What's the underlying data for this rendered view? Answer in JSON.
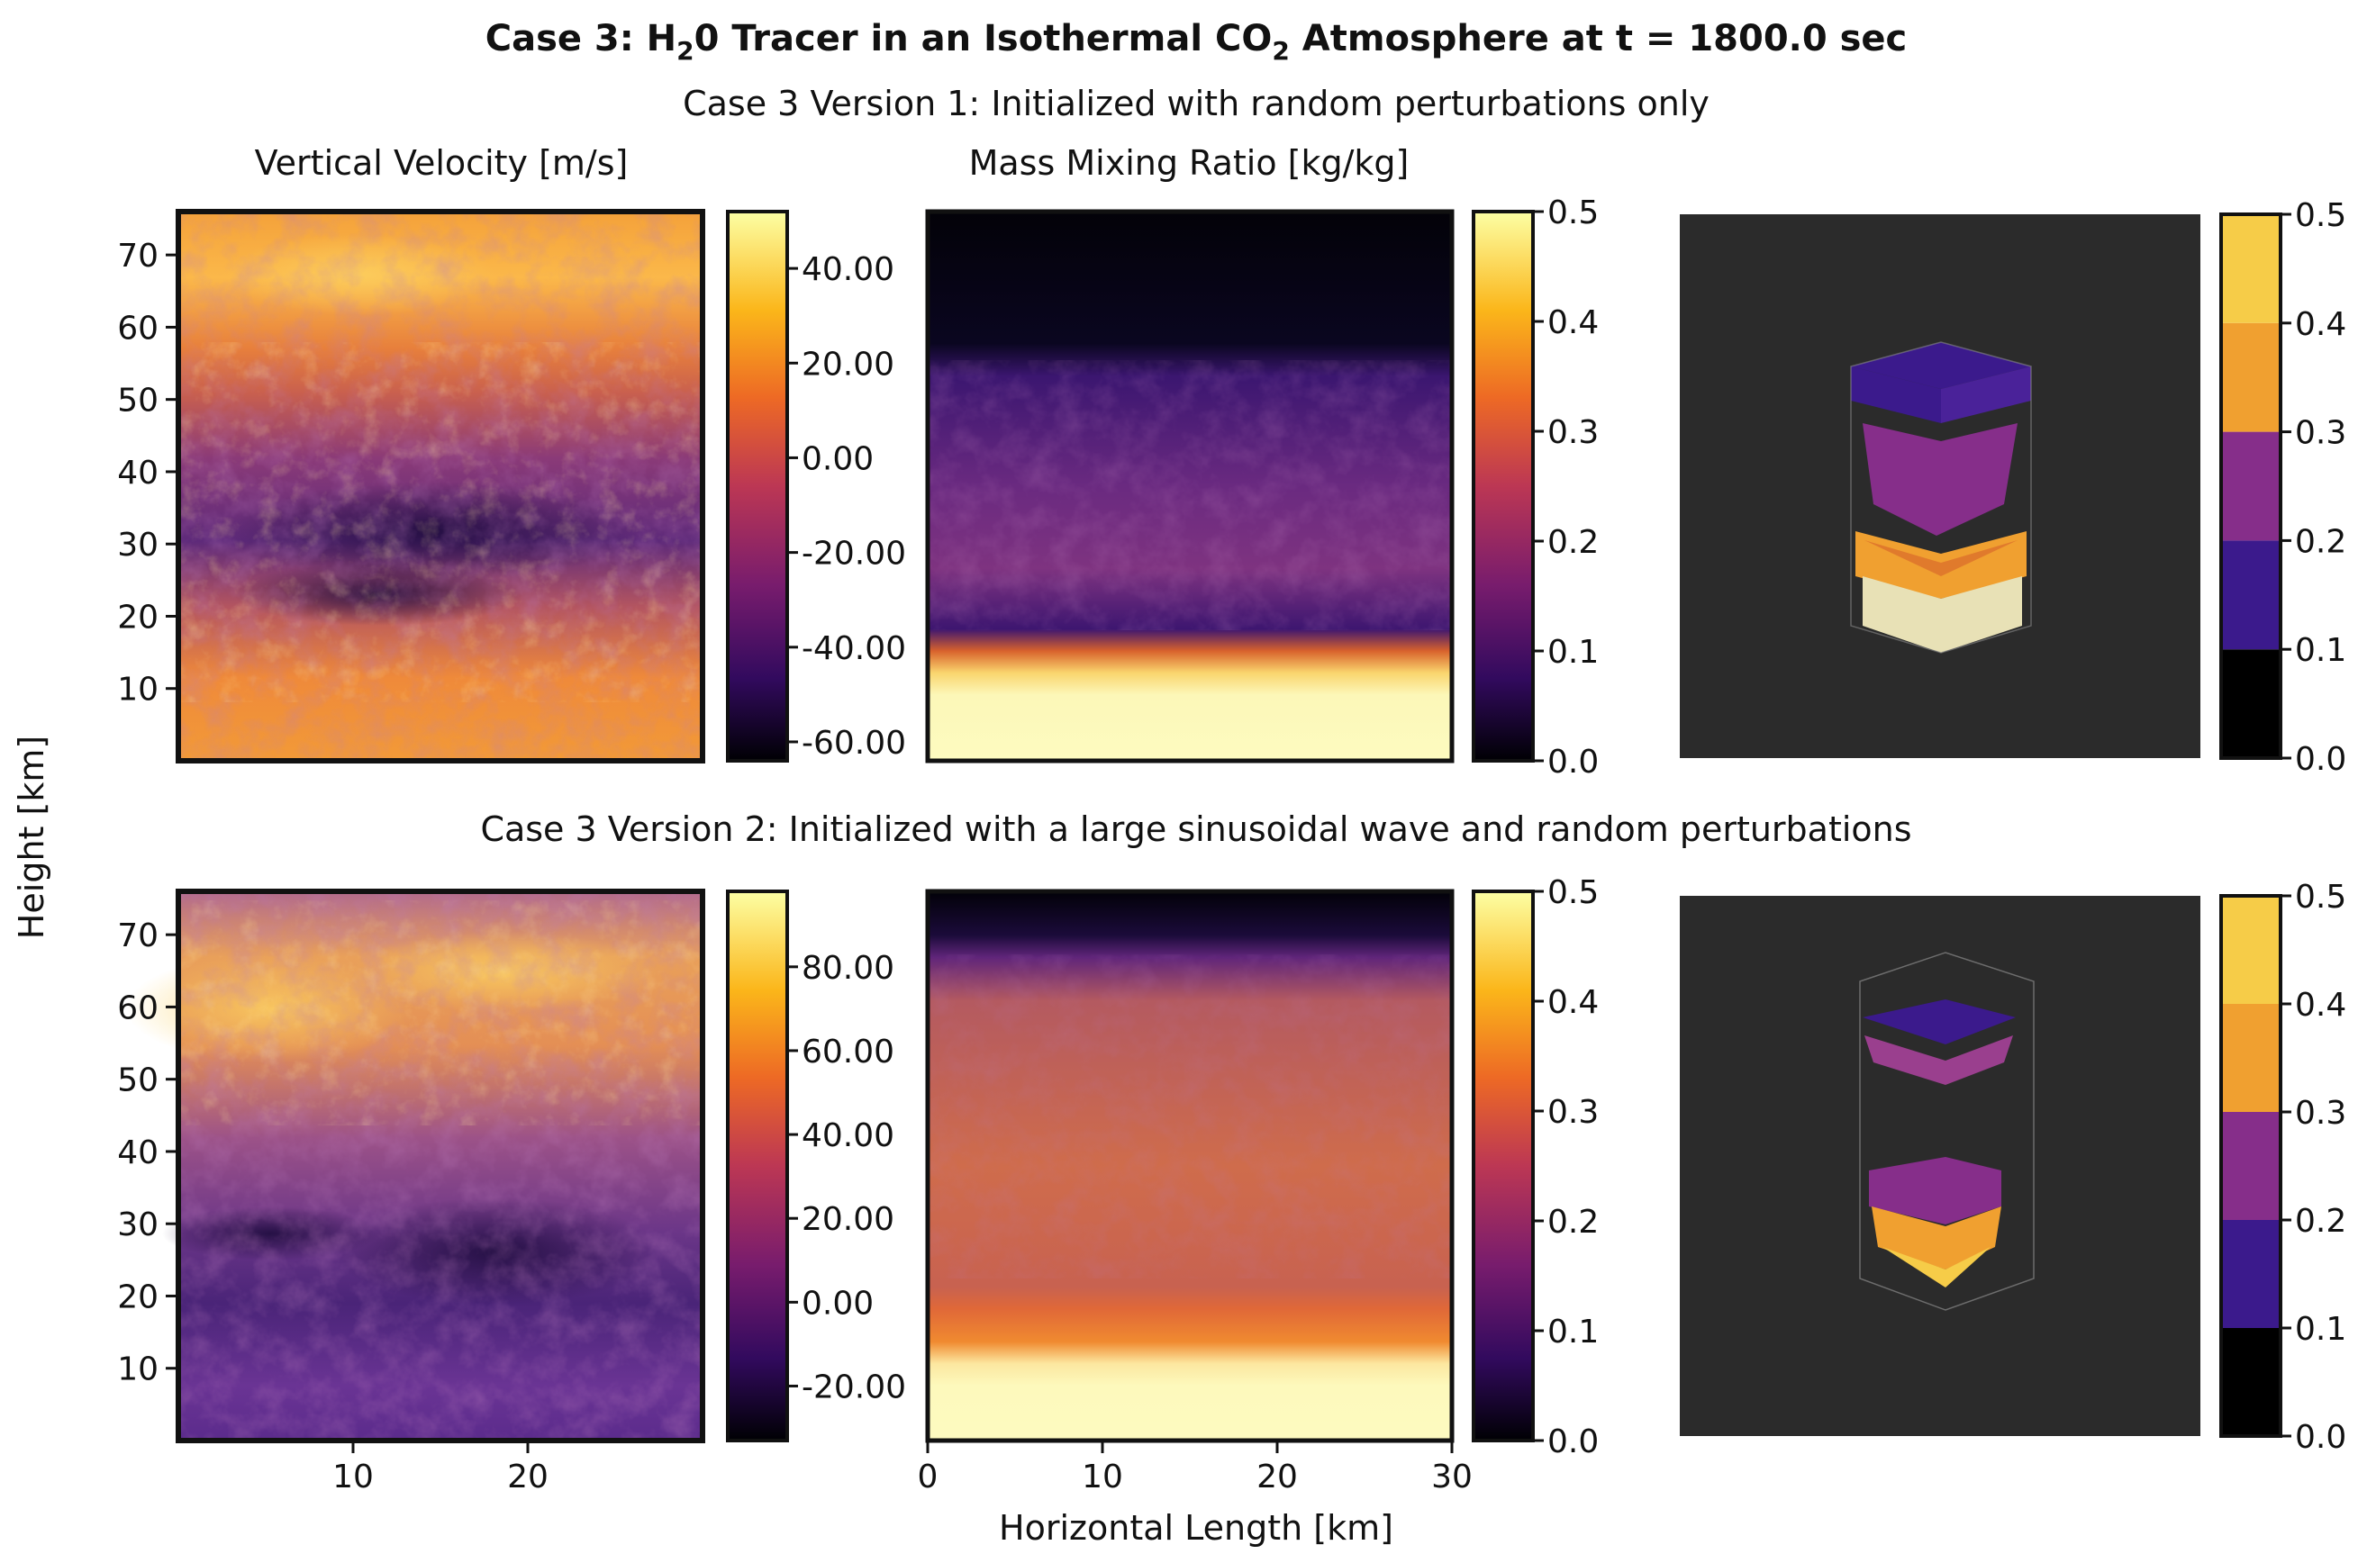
{
  "figure": {
    "title_prefix": "Case 3: H",
    "title_sub1": "2",
    "title_mid": "0 Tracer in an Isothermal CO",
    "title_sub2": "2",
    "title_suffix": " Atmosphere at t = 1800.0 sec",
    "shared_ylabel": "Height [km]",
    "shared_xlabel": "Horizontal Length [km]"
  },
  "row1": {
    "title": "Case 3 Version 1: Initialized with random perturbations only",
    "panel1_title": "Vertical Velocity [m/s]",
    "panel2_title": "Mass Mixing Ratio [kg/kg]"
  },
  "row2": {
    "title": "Case 3 Version 2: Initialized with a large sinusoidal wave and random perturbations"
  },
  "colors": {
    "inferno": [
      "#000004",
      "#320a5e",
      "#781c6d",
      "#bc3754",
      "#ed6925",
      "#fbb61a",
      "#fcffa4"
    ],
    "discrete": [
      "#000000",
      "#3b1a8c",
      "#862e8a",
      "#f0a030",
      "#f6cc48"
    ],
    "render_bg": "#2b2b2b"
  },
  "chart_data": [
    {
      "id": "v1-velocity",
      "type": "heatmap",
      "title": "Vertical Velocity [m/s]",
      "ylabel": "Height [km]",
      "xlim": [
        0,
        30
      ],
      "ylim": [
        0,
        76
      ],
      "yticks": [
        "10",
        "20",
        "30",
        "40",
        "50",
        "60",
        "70"
      ],
      "colorbar": {
        "range": [
          -64,
          52
        ],
        "ticks": [
          "40.00",
          "20.00",
          "0.00",
          "-20.00",
          "-40.00",
          "-60.00"
        ],
        "tick_values": [
          40,
          20,
          0,
          -20,
          -40,
          -60
        ]
      }
    },
    {
      "id": "v1-mixing",
      "type": "heatmap",
      "title": "Mass Mixing Ratio [kg/kg]",
      "xlim": [
        0,
        30
      ],
      "ylim": [
        0,
        76
      ],
      "colorbar": {
        "range": [
          0,
          0.5
        ],
        "ticks": [
          "0.5",
          "0.4",
          "0.3",
          "0.2",
          "0.1",
          "0.0"
        ],
        "tick_values": [
          0.5,
          0.4,
          0.3,
          0.2,
          0.1,
          0.0
        ]
      }
    },
    {
      "id": "v1-render",
      "type": "heatmap",
      "colorbar": {
        "range": [
          0,
          0.5
        ],
        "levels": [
          0,
          0.1,
          0.2,
          0.3,
          0.4,
          0.5
        ],
        "ticks": [
          "0.5",
          "0.4",
          "0.3",
          "0.2",
          "0.1",
          "0.0"
        ],
        "tick_values": [
          0.5,
          0.4,
          0.3,
          0.2,
          0.1,
          0.0
        ]
      }
    },
    {
      "id": "v2-velocity",
      "type": "heatmap",
      "ylabel": "Height [km]",
      "xlim": [
        0,
        30
      ],
      "ylim": [
        0,
        76
      ],
      "yticks": [
        "10",
        "20",
        "30",
        "40",
        "50",
        "60",
        "70"
      ],
      "xticks": [
        "10",
        "20"
      ],
      "colorbar": {
        "range": [
          -33,
          98
        ],
        "ticks": [
          "80.00",
          "60.00",
          "40.00",
          "20.00",
          "0.00",
          "-20.00"
        ],
        "tick_values": [
          80,
          60,
          40,
          20,
          0,
          -20
        ]
      }
    },
    {
      "id": "v2-mixing",
      "type": "heatmap",
      "xlabel": "Horizontal Length [km]",
      "xlim": [
        0,
        30
      ],
      "ylim": [
        0,
        76
      ],
      "xticks": [
        "0",
        "10",
        "20",
        "30"
      ],
      "colorbar": {
        "range": [
          0,
          0.5
        ],
        "ticks": [
          "0.5",
          "0.4",
          "0.3",
          "0.2",
          "0.1",
          "0.0"
        ],
        "tick_values": [
          0.5,
          0.4,
          0.3,
          0.2,
          0.1,
          0.0
        ]
      }
    },
    {
      "id": "v2-render",
      "type": "heatmap",
      "colorbar": {
        "range": [
          0,
          0.5
        ],
        "levels": [
          0,
          0.1,
          0.2,
          0.3,
          0.4,
          0.5
        ],
        "ticks": [
          "0.5",
          "0.4",
          "0.3",
          "0.2",
          "0.1",
          "0.0"
        ],
        "tick_values": [
          0.5,
          0.4,
          0.3,
          0.2,
          0.1,
          0.0
        ]
      }
    }
  ]
}
